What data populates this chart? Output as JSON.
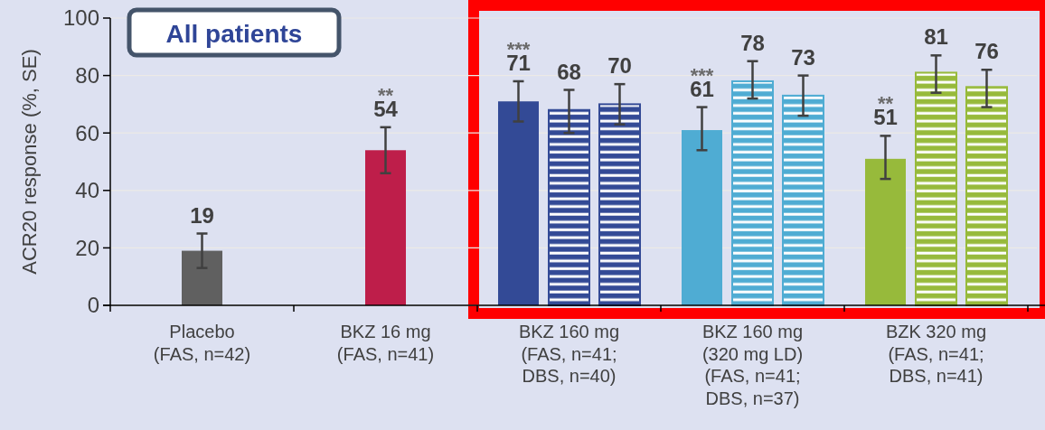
{
  "chart_data": {
    "type": "bar",
    "categories": [
      "Placebo\n(FAS, n=42)",
      "BKZ 16 mg\n(FAS, n=41)",
      "BKZ 160 mg\n(FAS, n=41;\nDBS, n=40)",
      "BKZ 160 mg\n(320 mg LD)\n(FAS, n=41;\nDBS, n=37)",
      "BZK 320 mg\n(FAS, n=41;\nDBS, n=41)"
    ],
    "series": [
      {
        "colors": [
          "#606060",
          "#be1e4a",
          "#334a96",
          "#4facd3",
          "#97ba3b"
        ],
        "values": [
          19,
          54,
          71,
          61,
          51
        ],
        "errors": [
          6,
          [
            46,
            62
          ],
          7,
          [
            54,
            69
          ],
          [
            44,
            59
          ]
        ],
        "value_labels": [
          "19",
          "**\n54",
          "***\n71",
          "***\n61",
          "**\n51"
        ]
      },
      {
        "colors": [
          null,
          null,
          "#334a96",
          "#4facd3",
          "#97ba3b"
        ],
        "values": [
          null,
          null,
          68,
          78,
          81
        ],
        "errors": [
          null,
          null,
          [
            60,
            75
          ],
          [
            72,
            85
          ],
          [
            74,
            87
          ]
        ],
        "value_labels": [
          null,
          null,
          "68",
          "78",
          "81"
        ]
      },
      {
        "colors": [
          null,
          null,
          "#334a96",
          "#4facd3",
          "#97ba3b"
        ],
        "values": [
          null,
          null,
          70,
          73,
          76
        ],
        "errors": [
          null,
          null,
          [
            63,
            77
          ],
          [
            66,
            80
          ],
          [
            69,
            82
          ]
        ],
        "value_labels": [
          null,
          null,
          "70",
          "73",
          "76"
        ]
      }
    ],
    "ylabel": "ACR20 response (%, SE)",
    "ylim": [
      0,
      100
    ],
    "yticks": [
      0,
      20,
      40,
      60,
      80,
      100
    ],
    "grid": "y",
    "annotations": [
      "All patients"
    ]
  }
}
